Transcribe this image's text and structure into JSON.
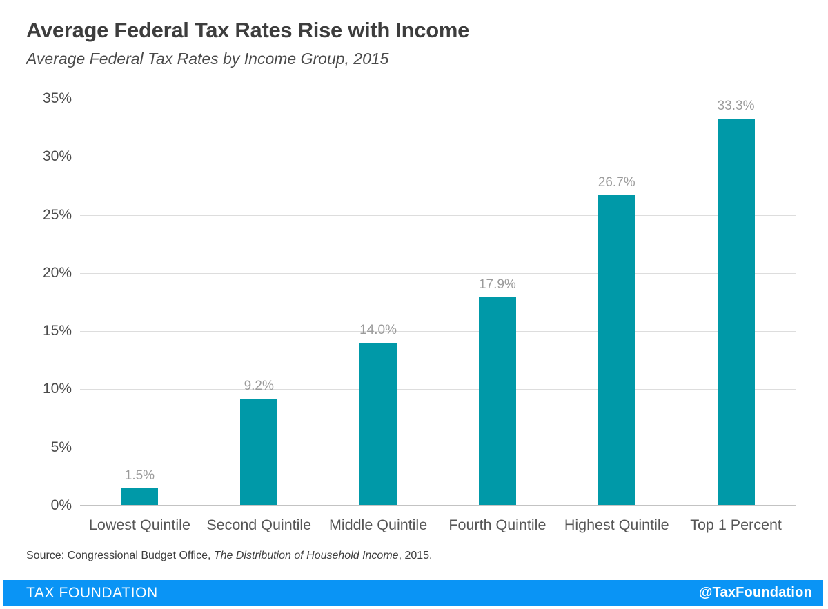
{
  "header": {
    "title": "Average Federal Tax Rates Rise with Income",
    "subtitle": "Average Federal Tax Rates by Income Group, 2015"
  },
  "chart_data": {
    "type": "bar",
    "title": "Average Federal Tax Rates Rise with Income",
    "subtitle": "Average Federal Tax Rates by Income Group, 2015",
    "categories": [
      "Lowest Quintile",
      "Second Quintile",
      "Middle Quintile",
      "Fourth Quintile",
      "Highest Quintile",
      "Top 1 Percent"
    ],
    "values": [
      1.5,
      9.2,
      14.0,
      17.9,
      26.7,
      33.3
    ],
    "value_labels": [
      "1.5%",
      "9.2%",
      "14.0%",
      "17.9%",
      "26.7%",
      "33.3%"
    ],
    "xlabel": "",
    "ylabel": "",
    "ylim": [
      0,
      35
    ],
    "ytick_step": 5,
    "ytick_labels": [
      "0%",
      "5%",
      "10%",
      "15%",
      "20%",
      "25%",
      "30%",
      "35%"
    ],
    "grid": true,
    "legend": false,
    "bar_color": "#0099A8"
  },
  "source": {
    "prefix": "Source: Congressional Budget Office, ",
    "italic": "The Distribution of Household Income",
    "suffix": ", 2015."
  },
  "footer": {
    "brand": "TAX FOUNDATION",
    "handle": "@TaxFoundation",
    "background_color": "#0A94F5"
  },
  "colors": {
    "bar": "#0099A8",
    "footer_background": "#0A94F5",
    "gridline": "#DDDDDD",
    "axis_line": "#C3C3C3",
    "title_text": "#3D3D3D",
    "value_label_text": "#9B9B9B"
  }
}
